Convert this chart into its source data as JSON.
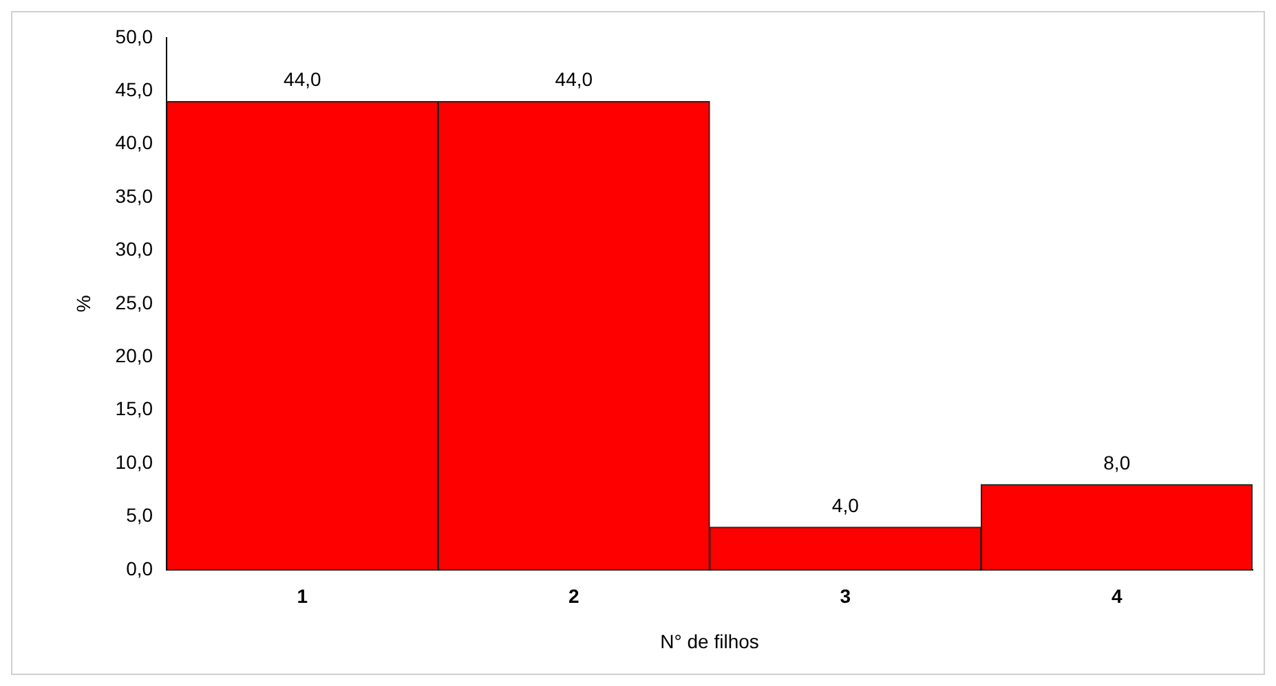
{
  "chart_data": {
    "type": "bar",
    "xlabel": "N° de filhos",
    "ylabel": "%",
    "categories": [
      "1",
      "2",
      "3",
      "4"
    ],
    "values": [
      44,
      44,
      4,
      8
    ],
    "value_labels": [
      "44,0",
      "44,0",
      "4,0",
      "8,0"
    ],
    "color": "#ff0000",
    "ylim": [
      0,
      50
    ],
    "yticks": [
      {
        "value": 0,
        "label": "0,0"
      },
      {
        "value": 5,
        "label": "5,0"
      },
      {
        "value": 10,
        "label": "10,0"
      },
      {
        "value": 15,
        "label": "15,0"
      },
      {
        "value": 20,
        "label": "20,0"
      },
      {
        "value": 25,
        "label": "25,0"
      },
      {
        "value": 30,
        "label": "30,0"
      },
      {
        "value": 35,
        "label": "35,0"
      },
      {
        "value": 40,
        "label": "40,0"
      },
      {
        "value": 45,
        "label": "45,0"
      },
      {
        "value": 50,
        "label": "50,0"
      }
    ],
    "grid": false,
    "legend": false
  }
}
